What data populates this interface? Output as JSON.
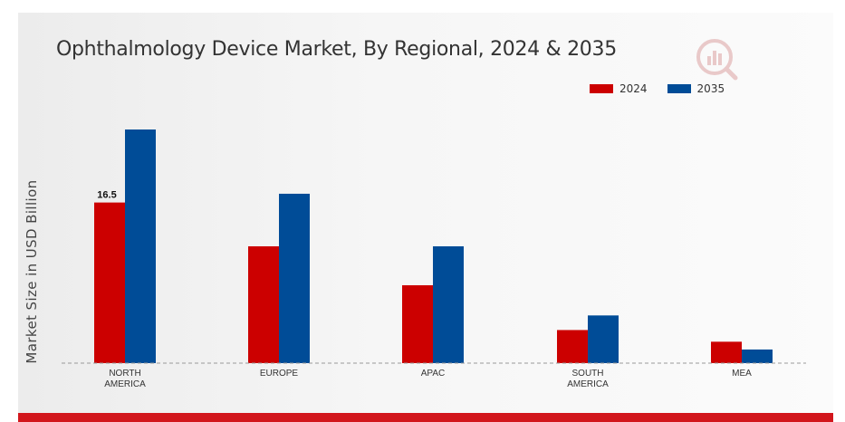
{
  "chart_data": {
    "type": "bar",
    "title": "Ophthalmology Device Market, By Regional, 2024 & 2035",
    "xlabel": "",
    "ylabel": "Market Size in USD Billion",
    "categories": [
      [
        "NORTH",
        "AMERICA"
      ],
      [
        "EUROPE"
      ],
      [
        "APAC"
      ],
      [
        "SOUTH",
        "AMERICA"
      ],
      [
        "MEA"
      ]
    ],
    "series": [
      {
        "name": "2024",
        "color": "#cc0000",
        "values": [
          16.5,
          12.0,
          8.0,
          3.4,
          2.2
        ]
      },
      {
        "name": "2035",
        "color": "#004c97",
        "values": [
          24.0,
          17.4,
          12.0,
          4.9,
          1.4
        ]
      }
    ],
    "data_labels": [
      {
        "series": 0,
        "index": 0,
        "text": "16.5"
      }
    ],
    "ylim": [
      0,
      28
    ],
    "grid": false,
    "legend": "top-right"
  }
}
